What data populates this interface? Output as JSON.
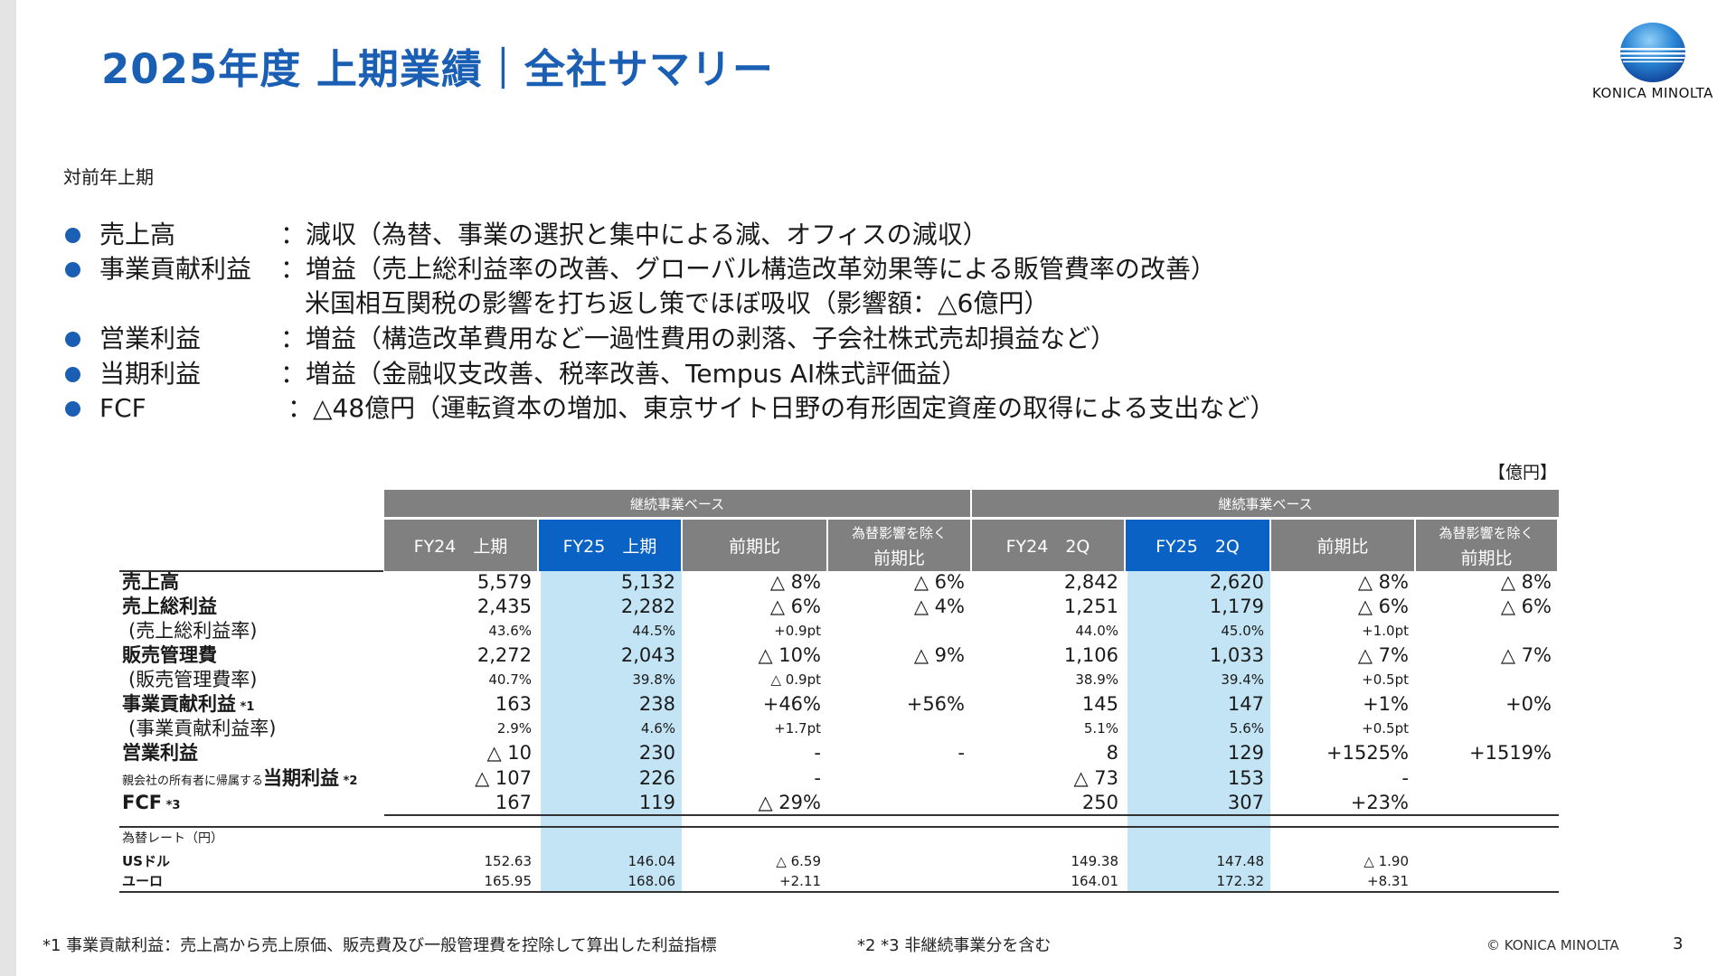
{
  "title": "2025年度 上期業績｜全社サマリー",
  "logo": {
    "text": "KONICA MINOLTA",
    "colors": [
      "#1a5fb4",
      "#5fb0ea"
    ]
  },
  "subtitle": "対前年上期",
  "bullets": [
    {
      "label": "売上高",
      "text": "：減収（為替、事業の選択と集中による減、オフィスの減収）"
    },
    {
      "label": "事業貢献利益",
      "text": "：増益（売上総利益率の改善、グローバル構造改革効果等による販管費率の改善）"
    },
    {
      "label": "",
      "text": "米国相互関税の影響を打ち返し策でほぼ吸収（影響額：△6億円）"
    },
    {
      "label": "営業利益",
      "text": "：増益（構造改革費用など一過性費用の剥落、子会社株式売却損益など）"
    },
    {
      "label": "当期利益",
      "text": "：増益（金融収支改善、税率改善、Tempus AI株式評価益）"
    },
    {
      "label": "FCF",
      "text": "：△48億円（運転資本の増加、東京サイト日野の有形固定資産の取得による支出など）"
    }
  ],
  "unit": "【億円】",
  "table": {
    "groups": [
      "継続事業ベース",
      "継続事業ベース"
    ],
    "columns": [
      {
        "label": "FY24　上期"
      },
      {
        "label": "FY25　上期",
        "highlight": true
      },
      {
        "label": "前期比"
      },
      {
        "label1": "為替影響を除く",
        "label2": "前期比"
      },
      {
        "label": "FY24　2Q"
      },
      {
        "label": "FY25　2Q",
        "highlight": true
      },
      {
        "label": "前期比"
      },
      {
        "label1": "為替影響を除く",
        "label2": "前期比"
      }
    ],
    "rows": [
      {
        "type": "main",
        "label": {
          "main": "売上高"
        },
        "values": [
          "5,579",
          "5,132",
          "△ 8%",
          "△ 6%",
          "2,842",
          "2,620",
          "△ 8%",
          "△ 8%"
        ]
      },
      {
        "type": "main",
        "label": {
          "main": "売上総利益"
        },
        "values": [
          "2,435",
          "2,282",
          "△ 6%",
          "△ 4%",
          "1,251",
          "1,179",
          "△ 6%",
          "△ 6%"
        ]
      },
      {
        "type": "ratio",
        "label": {
          "main": "(売上総利益率)"
        },
        "values": [
          "43.6%",
          "44.5%",
          "+0.9pt",
          "",
          "44.0%",
          "45.0%",
          "+1.0pt",
          ""
        ]
      },
      {
        "type": "main",
        "label": {
          "main": "販売管理費"
        },
        "values": [
          "2,272",
          "2,043",
          "△ 10%",
          "△ 9%",
          "1,106",
          "1,033",
          "△ 7%",
          "△ 7%"
        ]
      },
      {
        "type": "ratio",
        "label": {
          "main": "(販売管理費率)"
        },
        "values": [
          "40.7%",
          "39.8%",
          "△ 0.9pt",
          "",
          "38.9%",
          "39.4%",
          "+0.5pt",
          ""
        ]
      },
      {
        "type": "main",
        "label": {
          "main": "事業貢献利益",
          "note": " *1"
        },
        "values": [
          "163",
          "238",
          "+46%",
          "+56%",
          "145",
          "147",
          "+1%",
          "+0%"
        ]
      },
      {
        "type": "ratio",
        "label": {
          "main": "(事業貢献利益率)"
        },
        "values": [
          "2.9%",
          "4.6%",
          "+1.7pt",
          "",
          "5.1%",
          "5.6%",
          "+0.5pt",
          ""
        ]
      },
      {
        "type": "main",
        "label": {
          "main": "営業利益"
        },
        "values": [
          "△ 10",
          "230",
          "-",
          "-",
          "8",
          "129",
          "+1525%",
          "+1519%"
        ]
      },
      {
        "type": "main",
        "label": {
          "pre": "親会社の所有者に帰属する",
          "main": "当期利益",
          "note": " *2"
        },
        "values": [
          "△ 107",
          "226",
          "-",
          "",
          "△ 73",
          "153",
          "-",
          ""
        ]
      },
      {
        "type": "main",
        "label": {
          "main": "FCF",
          "note": " *3"
        },
        "values": [
          "167",
          "119",
          "△ 29%",
          "",
          "250",
          "307",
          "+23%",
          ""
        ]
      }
    ],
    "fx_header": "為替レート（円）",
    "fx_rows": [
      {
        "label": "USドル",
        "values": [
          "152.63",
          "146.04",
          "△ 6.59",
          "",
          "149.38",
          "147.48",
          "△ 1.90",
          ""
        ]
      },
      {
        "label": "ユーロ",
        "values": [
          "165.95",
          "168.06",
          "+2.11",
          "",
          "164.01",
          "172.32",
          "+8.31",
          ""
        ]
      }
    ]
  },
  "footnotes": {
    "note1": "*1 事業貢献利益：売上高から売上原価、販売費及び一般管理費を控除して算出した利益指標",
    "note2": "*2 *3 非継続事業分を含む"
  },
  "copyright": "© KONICA MINOLTA",
  "page_number": "3"
}
